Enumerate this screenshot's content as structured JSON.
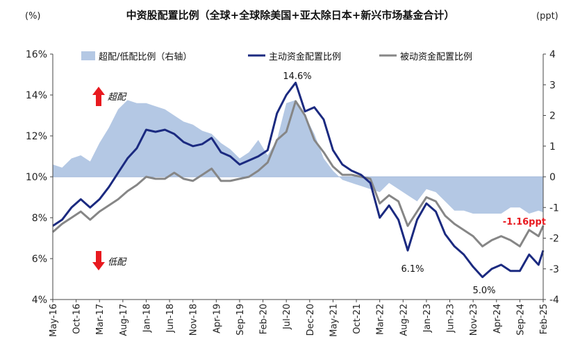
{
  "chart_data": {
    "type": "line",
    "title": "中资股配置比例（全球+全球除美国+亚太除日本+新兴市场基金合计）",
    "left_unit": "(%)",
    "right_unit": "(ppt)",
    "y_left": {
      "min": 4,
      "max": 16,
      "ticks": [
        "4%",
        "6%",
        "8%",
        "10%",
        "12%",
        "14%",
        "16%"
      ]
    },
    "y_right": {
      "min": -4,
      "max": 4,
      "ticks": [
        "-4",
        "-3",
        "-2",
        "-1",
        "0",
        "1",
        "2",
        "3",
        "4"
      ]
    },
    "x_ticks": [
      "May-16",
      "Oct-16",
      "Mar-17",
      "Aug-17",
      "Jan-18",
      "Jun-18",
      "Nov-18",
      "Apr-19",
      "Sep-19",
      "Feb-20",
      "Jul-20",
      "Dec-20",
      "May-21",
      "Oct-21",
      "Mar-22",
      "Aug-22",
      "Jan-23",
      "Jun-23",
      "Nov-23",
      "Apr-24",
      "Sep-24",
      "Feb-25"
    ],
    "legend": [
      "超配/低配比例（右轴）",
      "主动资金配置比例",
      "被动资金配置比例"
    ],
    "colors": {
      "area": "#b4c8e4",
      "active": "#1b2a80",
      "passive": "#868686",
      "arrow": "#e8191f"
    },
    "annotations": {
      "peak": "14.6%",
      "trough_2022": "6.1%",
      "trough_2023": "5.0%",
      "latest_gap": "-1.16ppt",
      "overweight": "超配",
      "underweight": "低配"
    },
    "x_months": [
      "2016-05",
      "2016-07",
      "2016-09",
      "2016-11",
      "2017-01",
      "2017-03",
      "2017-05",
      "2017-07",
      "2017-09",
      "2017-11",
      "2018-01",
      "2018-03",
      "2018-05",
      "2018-07",
      "2018-09",
      "2018-11",
      "2019-01",
      "2019-03",
      "2019-05",
      "2019-07",
      "2019-09",
      "2019-11",
      "2020-01",
      "2020-03",
      "2020-05",
      "2020-07",
      "2020-09",
      "2020-11",
      "2021-01",
      "2021-03",
      "2021-05",
      "2021-07",
      "2021-09",
      "2021-11",
      "2022-01",
      "2022-03",
      "2022-05",
      "2022-07",
      "2022-09",
      "2022-11",
      "2023-01",
      "2023-03",
      "2023-05",
      "2023-07",
      "2023-09",
      "2023-11",
      "2024-01",
      "2024-03",
      "2024-05",
      "2024-07",
      "2024-09",
      "2024-11",
      "2025-01",
      "2025-02"
    ],
    "series": [
      {
        "name": "超配/低配比例（右轴）",
        "axis": "right",
        "type": "area",
        "values": [
          0.4,
          0.3,
          0.6,
          0.7,
          0.5,
          1.1,
          1.6,
          2.2,
          2.5,
          2.4,
          2.4,
          2.3,
          2.2,
          2.0,
          1.8,
          1.7,
          1.5,
          1.4,
          1.1,
          0.9,
          0.6,
          0.8,
          1.2,
          0.7,
          1.2,
          2.4,
          2.5,
          2.0,
          1.4,
          0.6,
          0.2,
          -0.1,
          -0.2,
          -0.3,
          -0.4,
          -0.5,
          -0.2,
          -0.4,
          -0.6,
          -0.8,
          -0.4,
          -0.5,
          -0.8,
          -1.1,
          -1.1,
          -1.2,
          -1.2,
          -1.2,
          -1.2,
          -1.0,
          -1.0,
          -1.2,
          -1.1,
          -1.16
        ]
      },
      {
        "name": "主动资金配置比例",
        "axis": "left",
        "values": [
          7.6,
          7.9,
          8.5,
          8.9,
          8.5,
          8.9,
          9.5,
          10.2,
          10.9,
          11.4,
          12.3,
          12.2,
          12.3,
          12.1,
          11.7,
          11.5,
          11.6,
          11.9,
          11.2,
          11.0,
          10.6,
          10.8,
          11.0,
          11.3,
          13.1,
          14.0,
          14.6,
          13.2,
          13.4,
          12.8,
          11.3,
          10.6,
          10.3,
          10.1,
          9.7,
          8.0,
          8.6,
          7.9,
          6.4,
          7.9,
          8.7,
          8.3,
          7.2,
          6.6,
          6.2,
          5.6,
          5.1,
          5.5,
          5.7,
          5.4,
          5.4,
          6.2,
          5.7,
          6.4
        ]
      },
      {
        "name": "被动资金配置比例",
        "axis": "left",
        "values": [
          7.3,
          7.7,
          8.0,
          8.3,
          7.9,
          8.3,
          8.6,
          8.9,
          9.3,
          9.6,
          10.0,
          9.9,
          9.9,
          10.2,
          9.9,
          9.8,
          10.1,
          10.4,
          9.8,
          9.8,
          9.9,
          10.0,
          10.3,
          10.7,
          11.8,
          12.2,
          13.7,
          13.0,
          11.8,
          11.2,
          10.5,
          10.1,
          10.1,
          10.0,
          9.9,
          8.7,
          9.1,
          8.8,
          7.6,
          8.3,
          9.0,
          8.8,
          8.1,
          7.7,
          7.4,
          7.1,
          6.6,
          6.9,
          7.1,
          6.9,
          6.6,
          7.4,
          7.1,
          7.6
        ]
      }
    ]
  }
}
